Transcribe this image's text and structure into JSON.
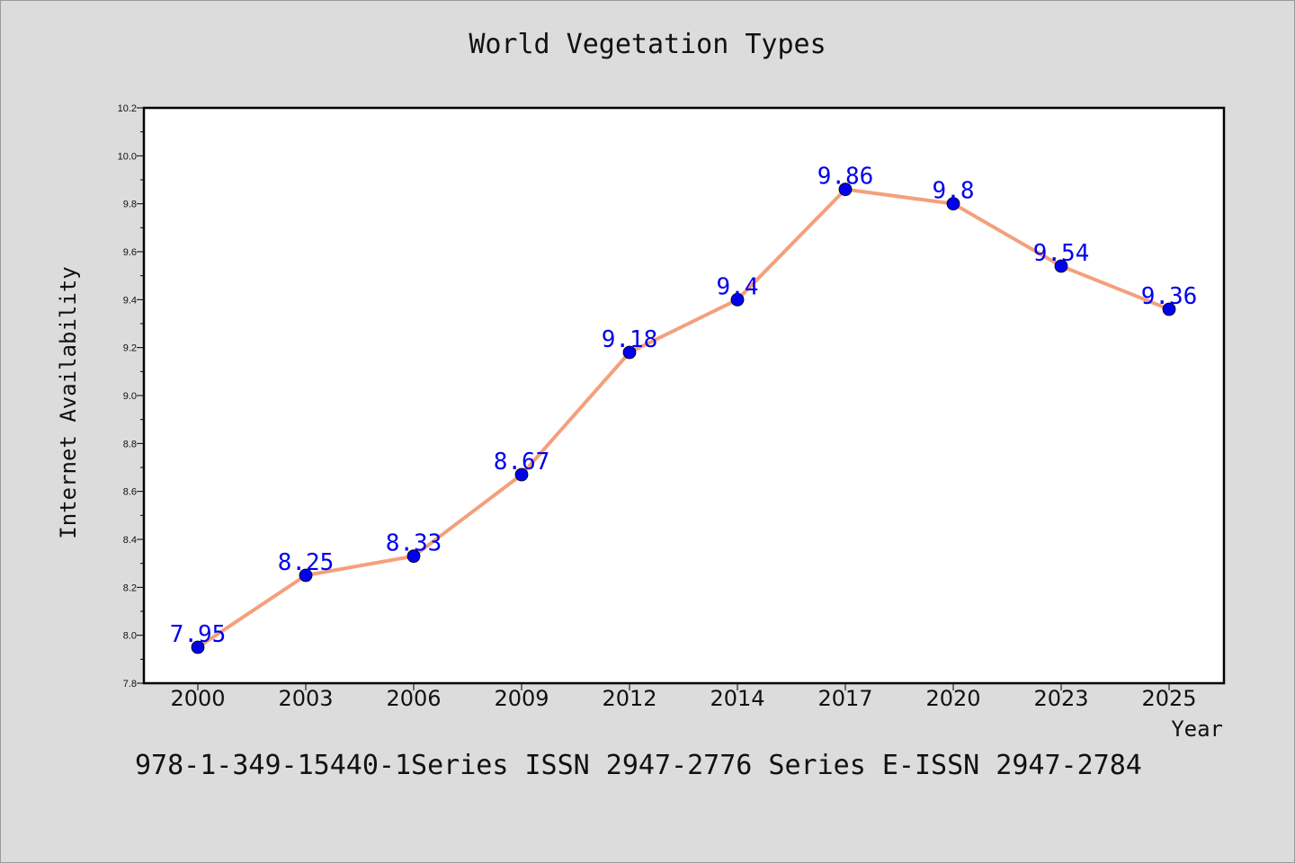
{
  "footer": "978-1-349-15440-1Series ISSN 2947-2776 Series E-ISSN 2947-2784",
  "chart_data": {
    "type": "line",
    "title": "World Vegetation Types",
    "xlabel": "Year",
    "ylabel": "Internet Availability",
    "categories": [
      "2000",
      "2003",
      "2006",
      "2009",
      "2012",
      "2014",
      "2017",
      "2020",
      "2023",
      "2025"
    ],
    "series": [
      {
        "values": [
          7.95,
          8.25,
          8.33,
          8.67,
          9.18,
          9.4,
          9.86,
          9.8,
          9.54,
          9.36
        ]
      }
    ],
    "data_labels": [
      "7.95",
      "8.25",
      "8.33",
      "8.67",
      "9.18",
      "9.4",
      "9.86",
      "9.8",
      "9.54",
      "9.36"
    ],
    "ylim": [
      7.8,
      10.2
    ],
    "yticks": [
      "7.8",
      "8.0",
      "8.2",
      "8.4",
      "8.6",
      "8.8",
      "9.0",
      "9.2",
      "9.4",
      "9.6",
      "9.8",
      "10.0",
      "10.2"
    ],
    "grid": false,
    "colors": {
      "line": "#f4a07c",
      "marker": "#0000ee",
      "label": "#0000ee"
    }
  }
}
